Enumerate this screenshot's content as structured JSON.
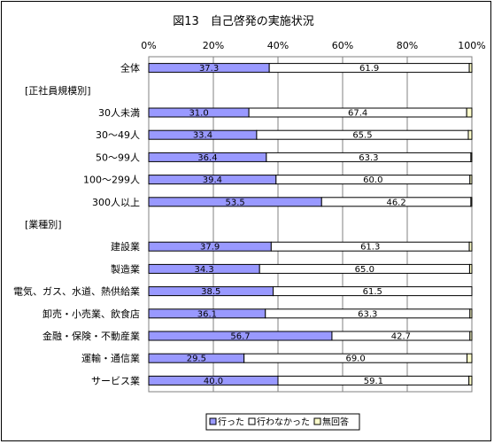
{
  "chart_data": {
    "type": "bar",
    "stacked": true,
    "orientation": "horizontal",
    "title": "図13　自己啓発の実施状況",
    "xlim": [
      0,
      100
    ],
    "x_ticks": [
      "0%",
      "20%",
      "40%",
      "60%",
      "80%",
      "100%"
    ],
    "grid": true,
    "legend_position": "bottom",
    "categories": [
      "全体",
      "[正社員規模別]",
      "30人未満",
      "30～49人",
      "50～99人",
      "100～299人",
      "300人以上",
      "[業種別]",
      "建設業",
      "製造業",
      "電気、ガス、水道、熱供給業",
      "卸売・小売業、飲食店",
      "金融・保険・不動産業",
      "運輸・通信業",
      "サービス業"
    ],
    "series": [
      {
        "name": "行った",
        "values": [
          37.3,
          null,
          31.0,
          33.4,
          36.4,
          39.4,
          53.5,
          null,
          37.9,
          34.3,
          38.5,
          36.1,
          56.7,
          29.5,
          40.0
        ],
        "labels": [
          "37.3",
          "",
          "31.0",
          "33.4",
          "36.4",
          "39.4",
          "53.5",
          "",
          "37.9",
          "34.3",
          "38.5",
          "36.1",
          "56.7",
          "29.5",
          "40.0"
        ],
        "color": "#9999ff"
      },
      {
        "name": "行わなかった",
        "values": [
          61.9,
          null,
          67.4,
          65.5,
          63.3,
          60.0,
          46.2,
          null,
          61.3,
          65.0,
          61.5,
          63.3,
          42.7,
          69.0,
          59.1
        ],
        "labels": [
          "61.9",
          "",
          "67.4",
          "65.5",
          "63.3",
          "60.0",
          "46.2",
          "",
          "61.3",
          "65.0",
          "61.5",
          "63.3",
          "42.7",
          "69.0",
          "59.1"
        ],
        "color": "#ffffff"
      },
      {
        "name": "無回答",
        "values": [
          0.8,
          null,
          1.6,
          1.1,
          0.3,
          0.6,
          0.3,
          null,
          0.8,
          0.7,
          0.0,
          0.6,
          0.6,
          1.5,
          0.9
        ],
        "color": "#ffffcc"
      }
    ]
  }
}
